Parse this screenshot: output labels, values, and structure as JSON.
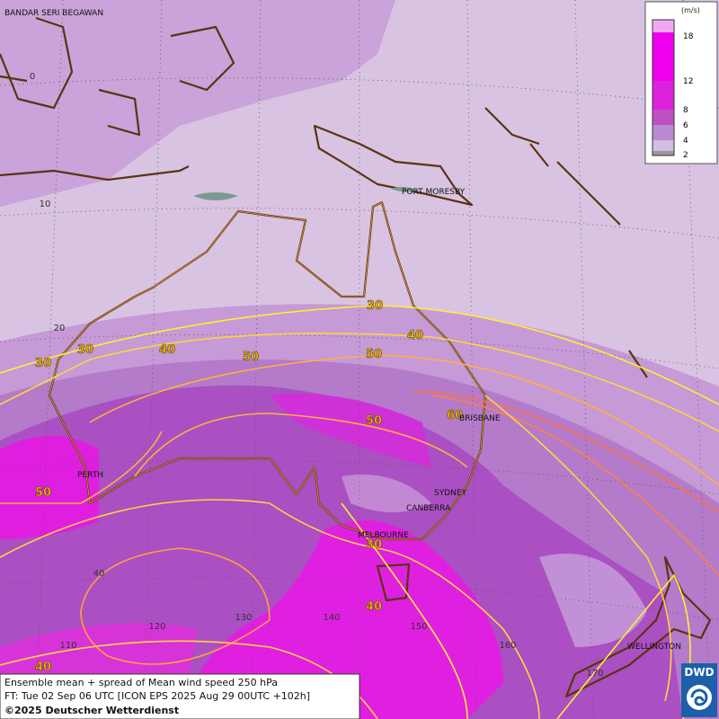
{
  "map": {
    "cities": [
      "BANDAR SERI BEGAWAN",
      "PORT MORESBY",
      "BRISBANE",
      "PERTH",
      "SYDNEY",
      "CANBERRA",
      "MELBOURNE",
      "WELLINGTON"
    ],
    "lat_labels": [
      0,
      10,
      20,
      40
    ],
    "lon_labels": [
      110,
      120,
      130,
      140,
      150,
      160,
      170
    ],
    "contour_labels": [
      30,
      30,
      30,
      40,
      40,
      50,
      50,
      50,
      60,
      50,
      30,
      40,
      40
    ],
    "legend": {
      "unit": "(m/s)",
      "levels": [
        2,
        4,
        6,
        8,
        12,
        18
      ]
    },
    "footer": [
      "Ensemble mean + spread of Mean wind speed 250 hPa",
      "FT: Tue 02 Sep 06 UTC [ICON EPS 2025 Aug 29 00UTC +102h]",
      "©2025 Deutscher Wetterdienst"
    ],
    "logo": "DWD"
  }
}
